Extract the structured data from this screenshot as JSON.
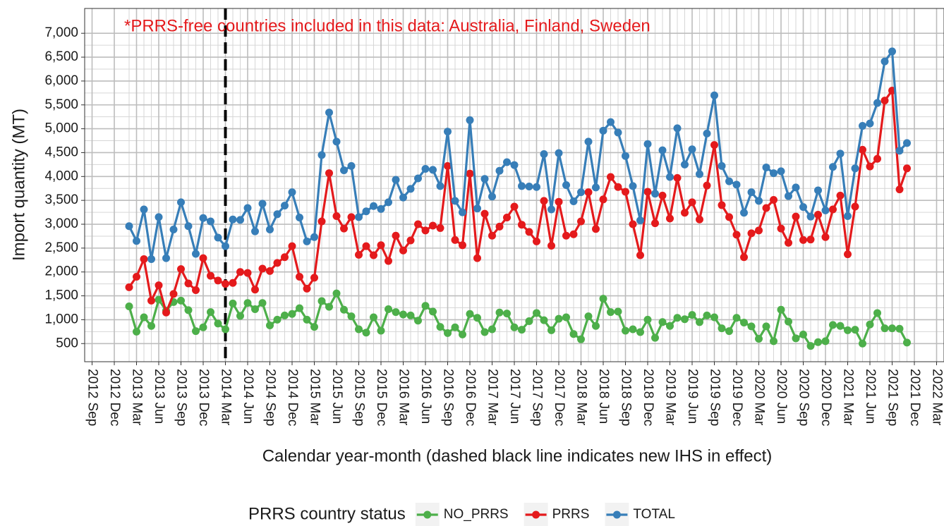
{
  "chart_data": {
    "type": "line",
    "annotation": "*PRRS-free countries included in this data: Australia, Finland, Sweden",
    "annotation_color": "#e41a1c",
    "vline": "2014-03",
    "x_label": "Calendar year-month (dashed black line indicates new IHS in effect)",
    "y_label": "Import quantity (MT)",
    "legend_title": "PRRS country status",
    "legend_position": "bottom",
    "grid": true,
    "x": [
      "2013-02",
      "2013-03",
      "2013-04",
      "2013-05",
      "2013-06",
      "2013-07",
      "2013-08",
      "2013-09",
      "2013-10",
      "2013-11",
      "2013-12",
      "2014-01",
      "2014-02",
      "2014-03",
      "2014-04",
      "2014-05",
      "2014-06",
      "2014-07",
      "2014-08",
      "2014-09",
      "2014-10",
      "2014-11",
      "2014-12",
      "2015-01",
      "2015-02",
      "2015-03",
      "2015-04",
      "2015-05",
      "2015-06",
      "2015-07",
      "2015-08",
      "2015-09",
      "2015-10",
      "2015-11",
      "2015-12",
      "2016-01",
      "2016-02",
      "2016-03",
      "2016-04",
      "2016-05",
      "2016-06",
      "2016-07",
      "2016-08",
      "2016-09",
      "2016-10",
      "2016-11",
      "2016-12",
      "2017-01",
      "2017-02",
      "2017-03",
      "2017-04",
      "2017-05",
      "2017-06",
      "2017-07",
      "2017-08",
      "2017-09",
      "2017-10",
      "2017-11",
      "2017-12",
      "2018-01",
      "2018-02",
      "2018-03",
      "2018-04",
      "2018-05",
      "2018-06",
      "2018-07",
      "2018-08",
      "2018-09",
      "2018-10",
      "2018-11",
      "2018-12",
      "2019-01",
      "2019-02",
      "2019-03",
      "2019-04",
      "2019-05",
      "2019-06",
      "2019-07",
      "2019-08",
      "2019-09",
      "2019-10",
      "2019-11",
      "2019-12",
      "2020-01",
      "2020-02",
      "2020-03",
      "2020-04",
      "2020-05",
      "2020-06",
      "2020-07",
      "2020-08",
      "2020-09",
      "2020-10",
      "2020-11",
      "2020-12",
      "2021-01",
      "2021-02",
      "2021-03",
      "2021-04",
      "2021-05",
      "2021-06",
      "2021-07",
      "2021-08",
      "2021-09",
      "2021-10",
      "2021-11"
    ],
    "series": [
      {
        "name": "NO_PRRS",
        "color": "#4daf4a",
        "values": [
          1280,
          750,
          1050,
          870,
          1420,
          1190,
          1370,
          1400,
          1200,
          760,
          840,
          1160,
          920,
          800,
          1340,
          1080,
          1350,
          1220,
          1350,
          880,
          1000,
          1090,
          1120,
          1240,
          1000,
          850,
          1390,
          1270,
          1550,
          1210,
          1070,
          800,
          730,
          1050,
          770,
          1220,
          1160,
          1110,
          1090,
          980,
          1290,
          1170,
          850,
          720,
          840,
          690,
          1120,
          1040,
          740,
          800,
          1150,
          1130,
          840,
          790,
          970,
          1140,
          990,
          780,
          1020,
          1050,
          700,
          590,
          1070,
          870,
          1440,
          1160,
          1170,
          770,
          800,
          740,
          1000,
          620,
          950,
          870,
          1040,
          1010,
          1100,
          950,
          1090,
          1050,
          820,
          760,
          1040,
          940,
          860,
          600,
          860,
          550,
          1210,
          960,
          610,
          690,
          450,
          530,
          550,
          890,
          870,
          780,
          790,
          500,
          900,
          1140,
          820,
          820,
          810,
          520
        ]
      },
      {
        "name": "PRRS",
        "color": "#e41a1c",
        "values": [
          1680,
          1900,
          2270,
          1400,
          1720,
          1150,
          1540,
          2060,
          1760,
          1620,
          2290,
          1920,
          1820,
          1750,
          1770,
          2000,
          1980,
          1630,
          2070,
          2020,
          2190,
          2310,
          2540,
          1900,
          1650,
          1880,
          3060,
          4070,
          3170,
          2910,
          3150,
          2360,
          2540,
          2350,
          2560,
          2230,
          2760,
          2450,
          2660,
          3000,
          2870,
          2970,
          2920,
          4220,
          2670,
          2560,
          4060,
          2290,
          3220,
          2760,
          2950,
          3140,
          3370,
          2990,
          2840,
          2640,
          3490,
          2550,
          3470,
          2760,
          2790,
          3060,
          3670,
          2900,
          3520,
          3990,
          3780,
          3680,
          3000,
          2350,
          3680,
          3020,
          3600,
          3120,
          3970,
          3240,
          3460,
          3100,
          3810,
          4660,
          3400,
          3150,
          2780,
          2310,
          2810,
          2870,
          3340,
          3510,
          2910,
          2610,
          3160,
          2670,
          2680,
          3200,
          2730,
          3310,
          3600,
          2370,
          3370,
          4560,
          4210,
          4370,
          5590,
          5800,
          3730,
          4170
        ]
      },
      {
        "name": "TOTAL",
        "color": "#377eb8",
        "values": [
          2960,
          2650,
          3310,
          2270,
          3150,
          2290,
          2890,
          3460,
          2960,
          2380,
          3130,
          3060,
          2720,
          2540,
          3100,
          3090,
          3340,
          2850,
          3430,
          2890,
          3210,
          3390,
          3670,
          3140,
          2640,
          2730,
          4450,
          5340,
          4730,
          4130,
          4220,
          3150,
          3270,
          3380,
          3320,
          3460,
          3930,
          3560,
          3740,
          3960,
          4160,
          4140,
          3800,
          4940,
          3490,
          3250,
          5180,
          3330,
          3950,
          3580,
          4120,
          4300,
          4240,
          3800,
          3790,
          3780,
          4470,
          3310,
          4490,
          3820,
          3480,
          3670,
          4730,
          3770,
          4960,
          5140,
          4920,
          4430,
          3800,
          3080,
          4680,
          3640,
          4550,
          3990,
          5010,
          4250,
          4570,
          4050,
          4900,
          5700,
          4220,
          3900,
          3830,
          3240,
          3670,
          3490,
          4190,
          4070,
          4110,
          3590,
          3770,
          3360,
          3160,
          3710,
          3290,
          4200,
          4480,
          3170,
          4170,
          5060,
          5110,
          5540,
          6410,
          6620,
          4540,
          4700
        ]
      }
    ],
    "xlim": [
      "2012-08",
      "2022-04"
    ],
    "xticks": [
      {
        "value": "2012-09",
        "label": "2012 Sep"
      },
      {
        "value": "2012-12",
        "label": "2012 Dec"
      },
      {
        "value": "2013-03",
        "label": "2013 Mar"
      },
      {
        "value": "2013-06",
        "label": "2013 Jun"
      },
      {
        "value": "2013-09",
        "label": "2013 Sep"
      },
      {
        "value": "2013-12",
        "label": "2013 Dec"
      },
      {
        "value": "2014-03",
        "label": "2014 Mar"
      },
      {
        "value": "2014-06",
        "label": "2014 Jun"
      },
      {
        "value": "2014-09",
        "label": "2014 Sep"
      },
      {
        "value": "2014-12",
        "label": "2014 Dec"
      },
      {
        "value": "2015-03",
        "label": "2015 Mar"
      },
      {
        "value": "2015-06",
        "label": "2015 Jun"
      },
      {
        "value": "2015-09",
        "label": "2015 Sep"
      },
      {
        "value": "2015-12",
        "label": "2015 Dec"
      },
      {
        "value": "2016-03",
        "label": "2016 Mar"
      },
      {
        "value": "2016-06",
        "label": "2016 Jun"
      },
      {
        "value": "2016-09",
        "label": "2016 Sep"
      },
      {
        "value": "2016-12",
        "label": "2016 Dec"
      },
      {
        "value": "2017-03",
        "label": "2017 Mar"
      },
      {
        "value": "2017-06",
        "label": "2017 Jun"
      },
      {
        "value": "2017-09",
        "label": "2017 Sep"
      },
      {
        "value": "2017-12",
        "label": "2017 Dec"
      },
      {
        "value": "2018-03",
        "label": "2018 Mar"
      },
      {
        "value": "2018-06",
        "label": "2018 Jun"
      },
      {
        "value": "2018-09",
        "label": "2018 Sep"
      },
      {
        "value": "2018-12",
        "label": "2018 Dec"
      },
      {
        "value": "2019-03",
        "label": "2019 Mar"
      },
      {
        "value": "2019-06",
        "label": "2019 Jun"
      },
      {
        "value": "2019-09",
        "label": "2019 Sep"
      },
      {
        "value": "2019-12",
        "label": "2019 Dec"
      },
      {
        "value": "2020-03",
        "label": "2020 Mar"
      },
      {
        "value": "2020-06",
        "label": "2020 Jun"
      },
      {
        "value": "2020-09",
        "label": "2020 Sep"
      },
      {
        "value": "2020-12",
        "label": "2020 Dec"
      },
      {
        "value": "2021-03",
        "label": "2021 Mar"
      },
      {
        "value": "2021-06",
        "label": "2021 Jun"
      },
      {
        "value": "2021-09",
        "label": "2021 Sep"
      },
      {
        "value": "2021-12",
        "label": "2021 Dec"
      },
      {
        "value": "2022-03",
        "label": "2022 Mar"
      }
    ],
    "ylim": [
      120,
      7520
    ],
    "yticks": [
      500,
      {
        "value": 1000,
        "label": "1,000"
      },
      {
        "value": 1500,
        "label": "1,500"
      },
      {
        "value": 2000,
        "label": "2,000"
      },
      {
        "value": 2500,
        "label": "2,500"
      },
      {
        "value": 3000,
        "label": "3,000"
      },
      {
        "value": 3500,
        "label": "3,500"
      },
      {
        "value": 4000,
        "label": "4,000"
      },
      {
        "value": 4500,
        "label": "4,500"
      },
      {
        "value": 5000,
        "label": "5,000"
      },
      {
        "value": 5500,
        "label": "5,500"
      },
      {
        "value": 6000,
        "label": "6,000"
      },
      {
        "value": 6500,
        "label": "6,500"
      },
      {
        "value": 7000,
        "label": "7,000"
      }
    ]
  }
}
